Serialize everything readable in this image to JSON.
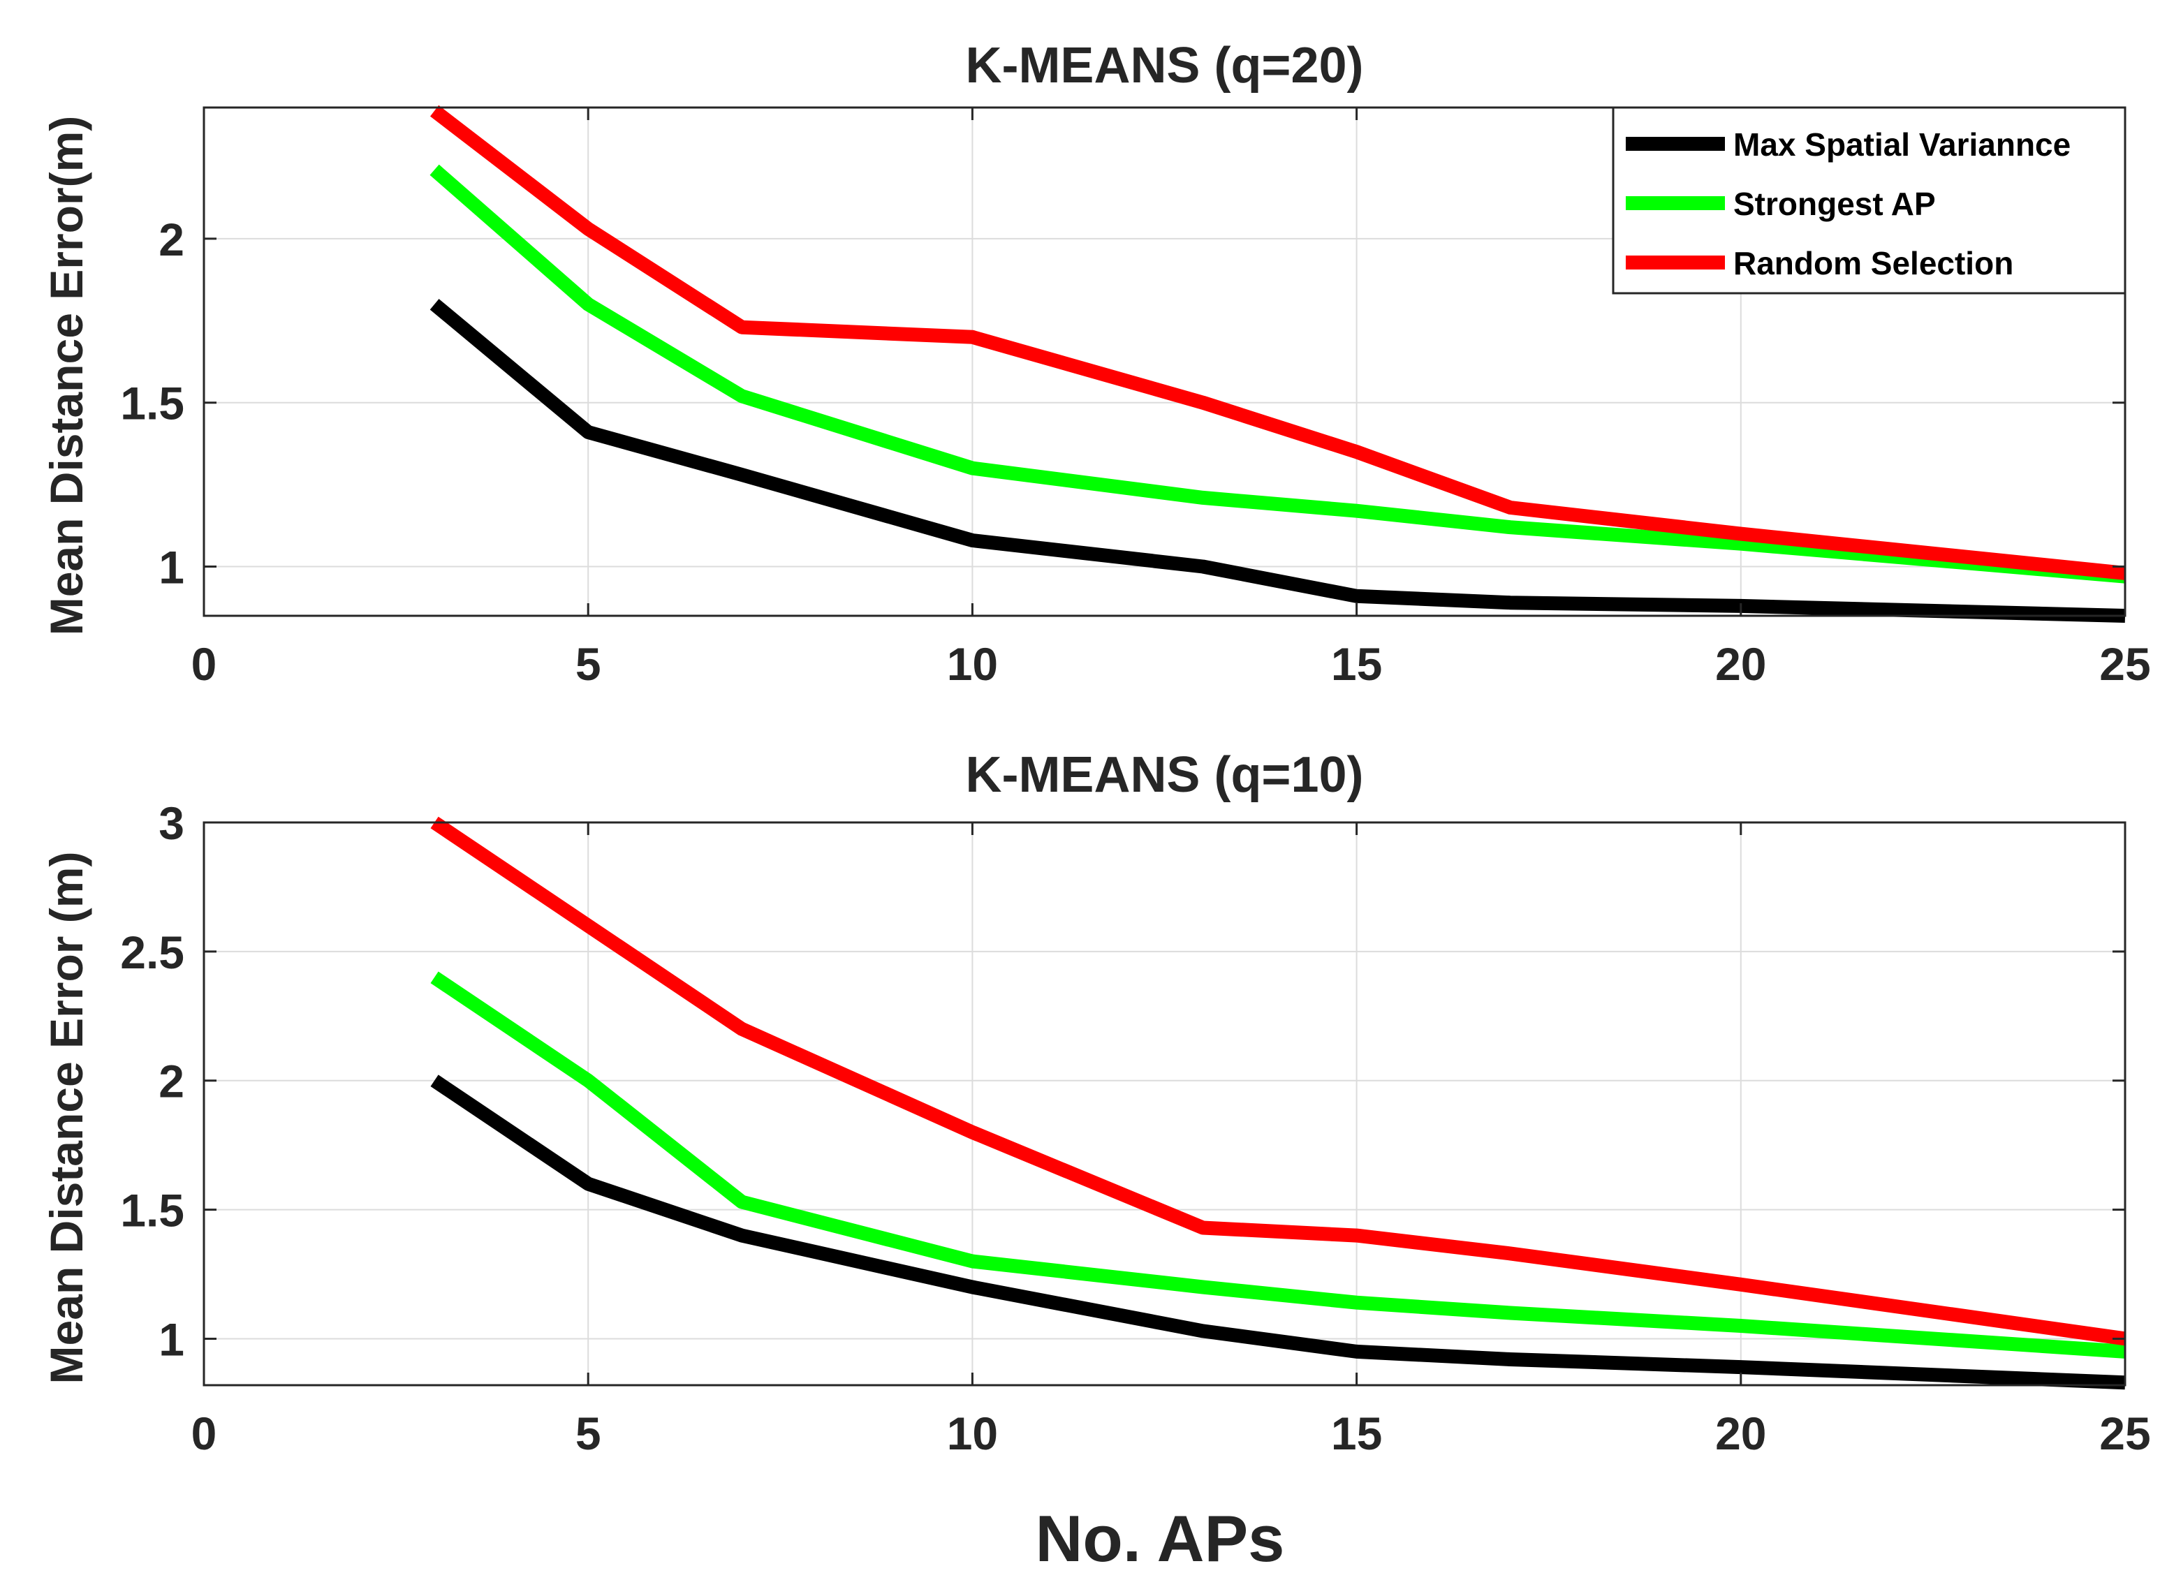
{
  "chart_data": [
    {
      "type": "line",
      "title": "K-MEANS (q=20)",
      "xlabel": "",
      "ylabel": "Mean Distance Error(m)",
      "xlim": [
        0,
        25
      ],
      "ylim": [
        0.85,
        2.4
      ],
      "xticks": [
        0,
        5,
        10,
        15,
        20,
        25
      ],
      "yticks": [
        1,
        1.5,
        2
      ],
      "xtick_labels": [
        "0",
        "5",
        "10",
        "15",
        "20",
        "25"
      ],
      "ytick_labels": [
        "1",
        "1.5",
        "2"
      ],
      "grid": true,
      "legend_position": "top-right",
      "x": [
        3,
        5,
        7,
        10,
        13,
        15,
        17,
        20,
        25
      ],
      "series": [
        {
          "name": "Max Spatial Variannce",
          "color": "#000000",
          "values": [
            1.8,
            1.41,
            1.28,
            1.08,
            1.0,
            0.91,
            0.89,
            0.88,
            0.85
          ]
        },
        {
          "name": "Strongest AP",
          "color": "#00ff00",
          "values": [
            2.21,
            1.8,
            1.52,
            1.3,
            1.21,
            1.17,
            1.12,
            1.07,
            0.97
          ]
        },
        {
          "name": "Random Selection",
          "color": "#ff0000",
          "values": [
            2.39,
            2.03,
            1.73,
            1.7,
            1.5,
            1.35,
            1.18,
            1.1,
            0.98
          ]
        }
      ]
    },
    {
      "type": "line",
      "title": "K-MEANS (q=10)",
      "xlabel": "No. APs",
      "ylabel": "Mean Distance Error (m)",
      "xlim": [
        0,
        25
      ],
      "ylim": [
        0.82,
        3.0
      ],
      "xticks": [
        0,
        5,
        10,
        15,
        20,
        25
      ],
      "yticks": [
        1,
        1.5,
        2,
        2.5,
        3
      ],
      "xtick_labels": [
        "0",
        "5",
        "10",
        "15",
        "20",
        "25"
      ],
      "ytick_labels": [
        "1",
        "1.5",
        "2",
        "2.5",
        "3"
      ],
      "grid": true,
      "legend_position": "none",
      "x": [
        3,
        5,
        7,
        10,
        13,
        15,
        17,
        20,
        25
      ],
      "series": [
        {
          "name": "Max Spatial Variannce",
          "color": "#000000",
          "values": [
            2.0,
            1.6,
            1.4,
            1.2,
            1.03,
            0.95,
            0.92,
            0.89,
            0.83
          ]
        },
        {
          "name": "Strongest AP",
          "color": "#00ff00",
          "values": [
            2.4,
            2.0,
            1.53,
            1.3,
            1.2,
            1.14,
            1.1,
            1.05,
            0.95
          ]
        },
        {
          "name": "Random Selection",
          "color": "#ff0000",
          "values": [
            3.0,
            2.6,
            2.2,
            1.8,
            1.43,
            1.4,
            1.33,
            1.21,
            1.0
          ]
        }
      ]
    }
  ]
}
